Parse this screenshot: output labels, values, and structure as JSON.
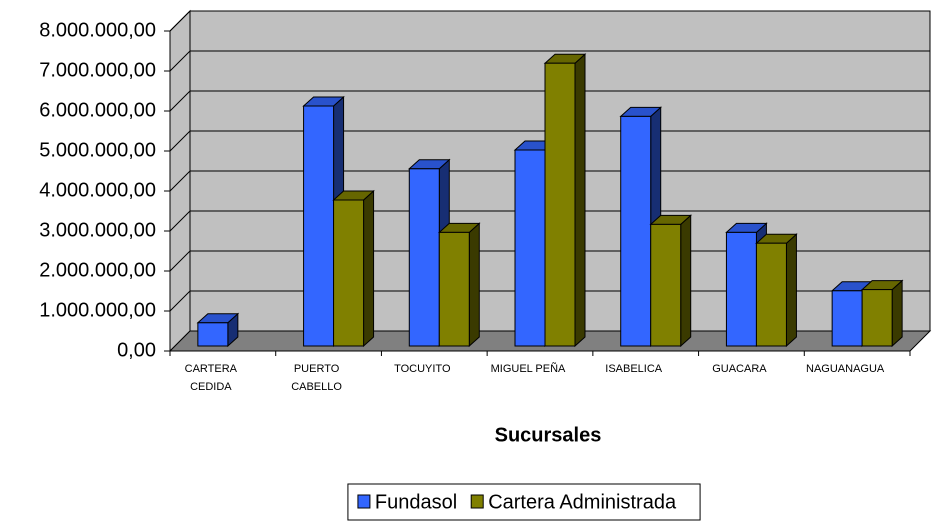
{
  "chart_data": {
    "type": "bar3d",
    "x_label": "Sucursales",
    "categories": [
      "CARTERA\nCEDIDA",
      "PUERTO\nCABELLO",
      "TOCUYITO",
      "MIGUEL PEÑA",
      "ISABELICA",
      "GUACARA",
      "NAGUANAGUA"
    ],
    "series": [
      {
        "name": "Fundasol",
        "color": "#3366ff",
        "values": [
          580000,
          6000000,
          4430000,
          4900000,
          5740000,
          2840000,
          1380000
        ]
      },
      {
        "name": "Cartera Administrada",
        "color": "#808000",
        "values": [
          null,
          3650000,
          2840000,
          7070000,
          3040000,
          2570000,
          1410000
        ]
      }
    ],
    "ylim": [
      0,
      8000000
    ],
    "yticks": [
      {
        "value": 0,
        "label": "0,00"
      },
      {
        "value": 1000000,
        "label": "1.000.000,00"
      },
      {
        "value": 2000000,
        "label": "2.000.000,00"
      },
      {
        "value": 3000000,
        "label": "3.000.000,00"
      },
      {
        "value": 4000000,
        "label": "4.000.000,00"
      },
      {
        "value": 5000000,
        "label": "5.000.000,00"
      },
      {
        "value": 6000000,
        "label": "6.000.000,00"
      },
      {
        "value": 7000000,
        "label": "7.000.000,00"
      },
      {
        "value": 8000000,
        "label": "8.000.000,00"
      }
    ],
    "grid": true,
    "legend": "bottom"
  }
}
